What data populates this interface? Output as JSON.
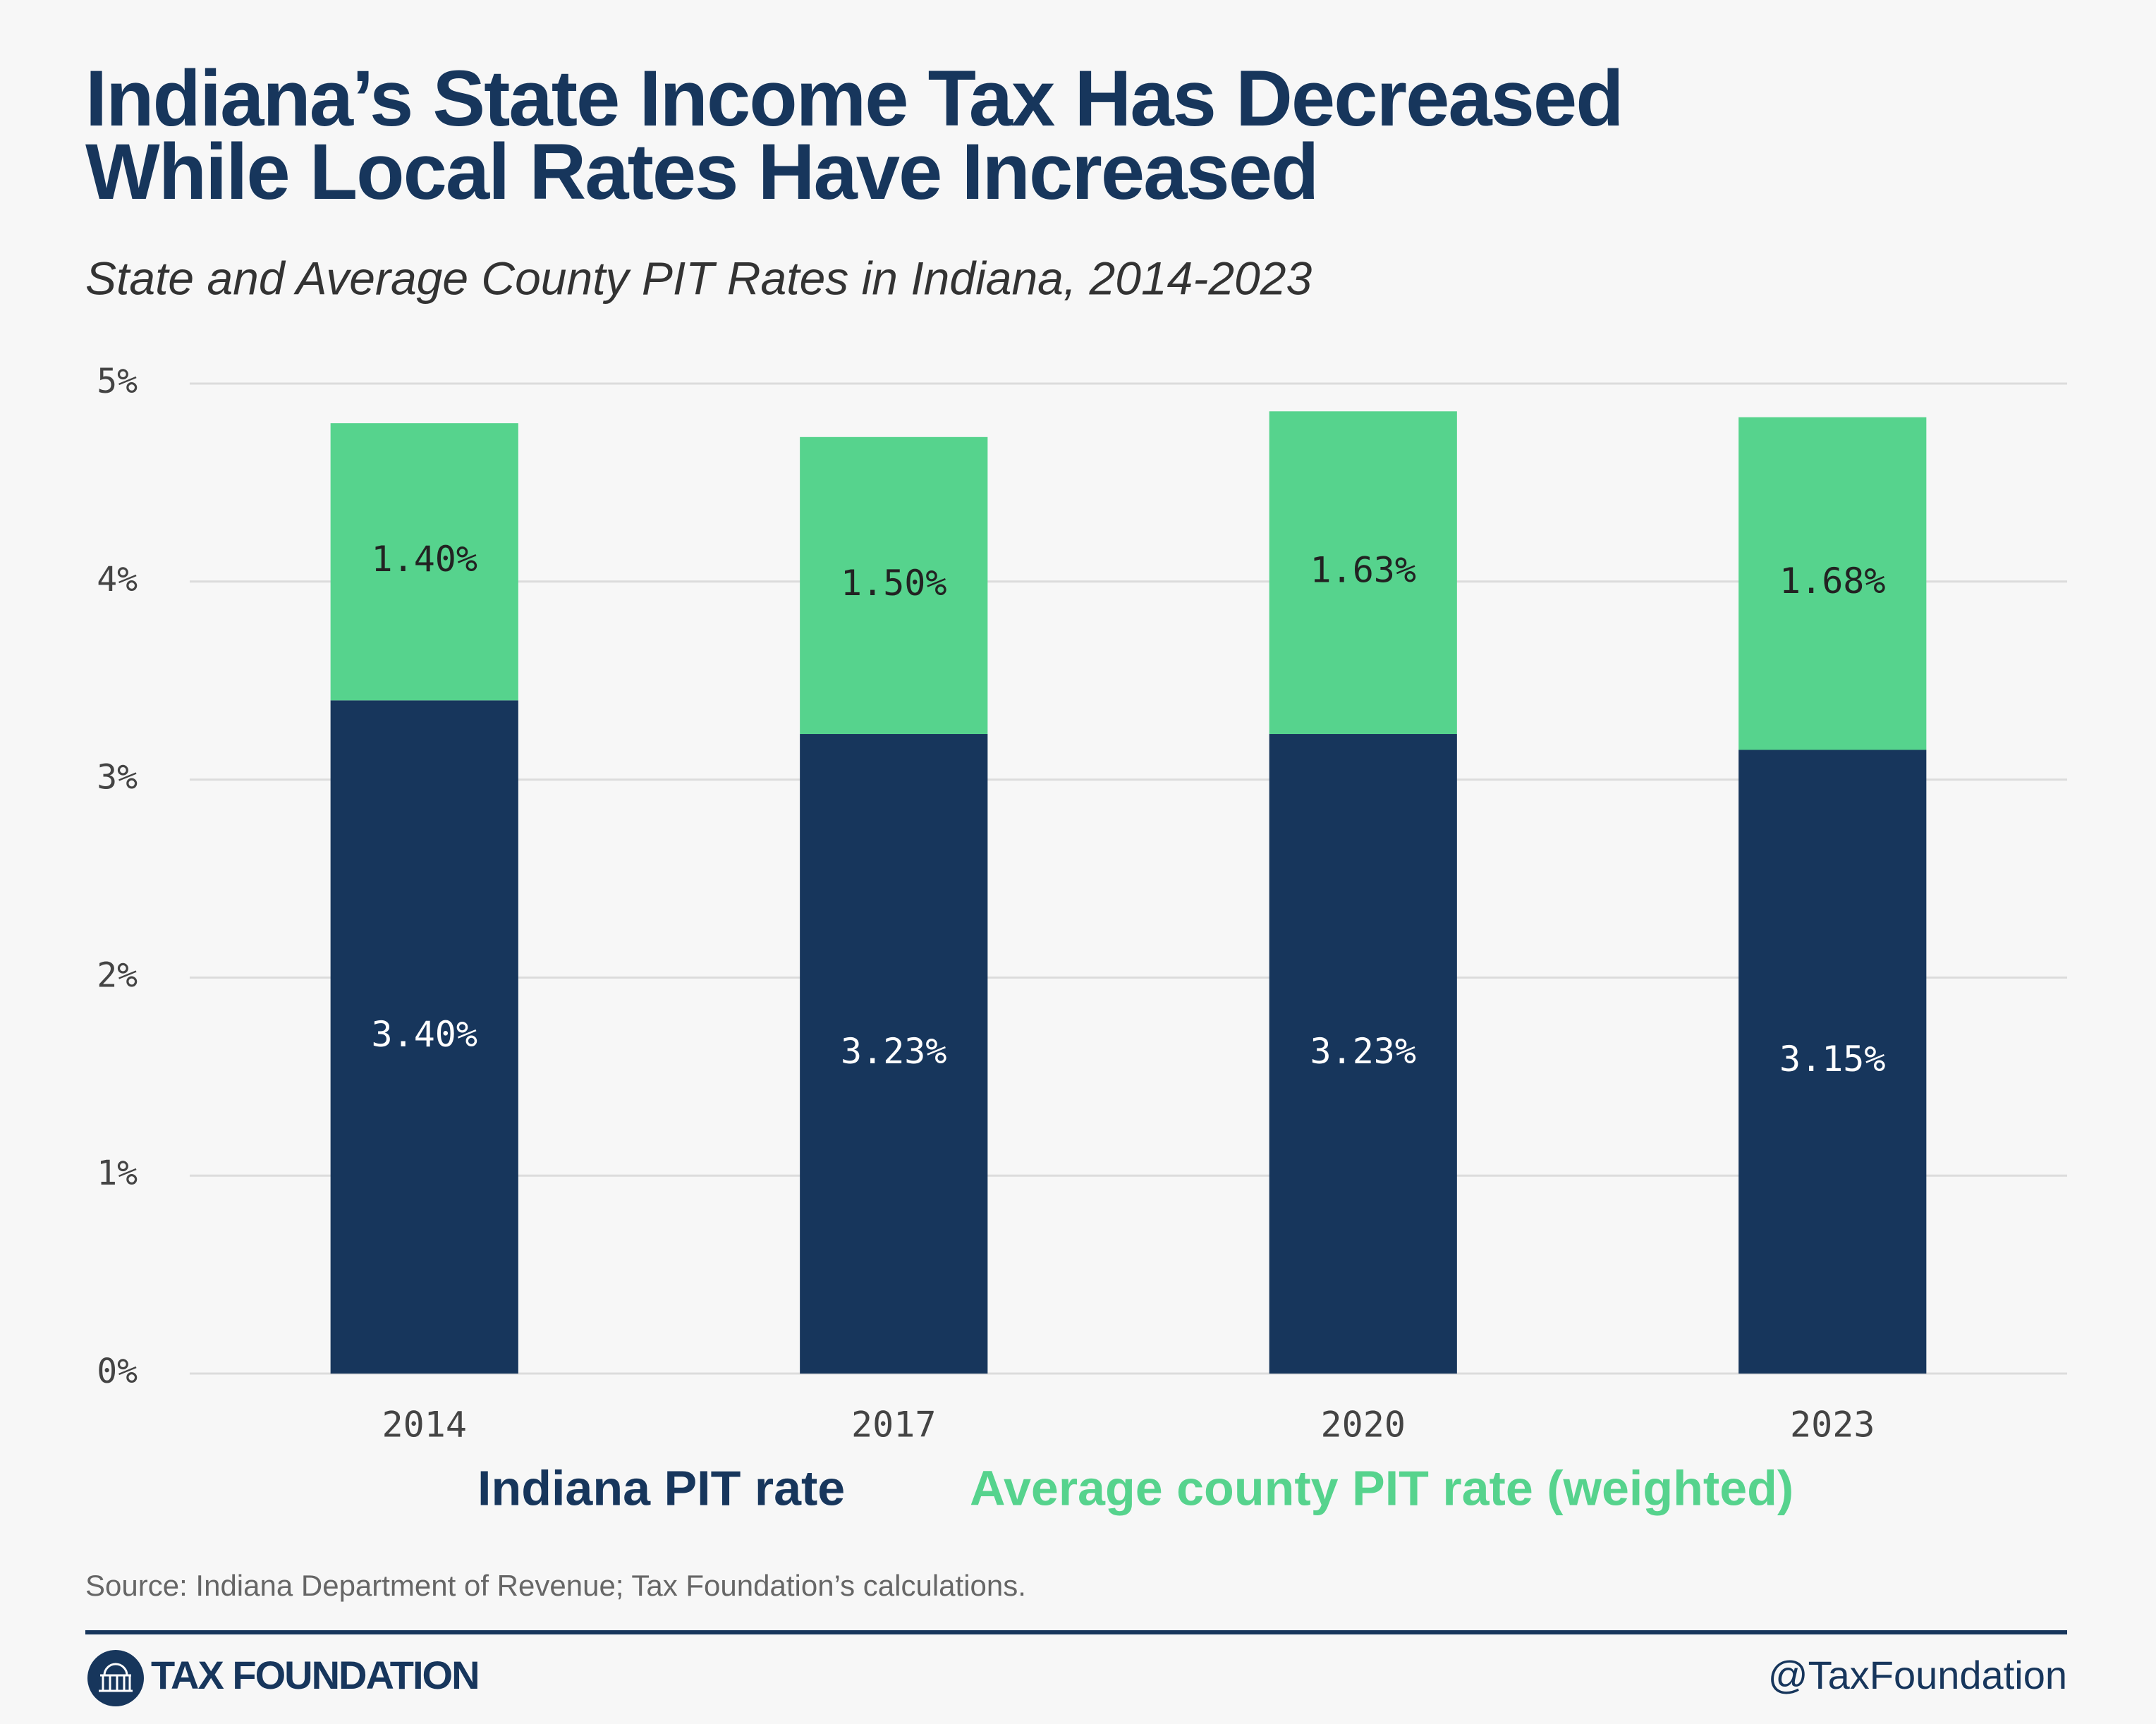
{
  "chart_data": {
    "type": "stacked_bar",
    "title": "Indiana’s State Income Tax Has Decreased While Local Rates Have Increased",
    "subtitle": "State and Average County PIT Rates in Indiana, 2014-2023",
    "categories": [
      "2014",
      "2017",
      "2020",
      "2023"
    ],
    "series": [
      {
        "name": "Indiana PIT rate",
        "color": "#17365c",
        "values": [
          3.4,
          3.23,
          3.23,
          3.15
        ],
        "value_labels": [
          "3.40%",
          "3.23%",
          "3.23%",
          "3.15%"
        ]
      },
      {
        "name": "Average county PIT rate (weighted)",
        "color": "#56d38d",
        "values": [
          1.4,
          1.5,
          1.63,
          1.68
        ],
        "value_labels": [
          "1.40%",
          "1.50%",
          "1.63%",
          "1.68%"
        ]
      }
    ],
    "ylim": [
      0,
      5
    ],
    "yticks": [
      {
        "value": 0,
        "label": "0%"
      },
      {
        "value": 1,
        "label": "1%"
      },
      {
        "value": 2,
        "label": "2%"
      },
      {
        "value": 3,
        "label": "3%"
      },
      {
        "value": 4,
        "label": "4%"
      },
      {
        "value": 5,
        "label": "5%"
      }
    ],
    "grid": true,
    "source": "Source: Indiana Department of Revenue; Tax Foundation’s calculations.",
    "brand": "TAX FOUNDATION",
    "handle": "@TaxFoundation"
  }
}
